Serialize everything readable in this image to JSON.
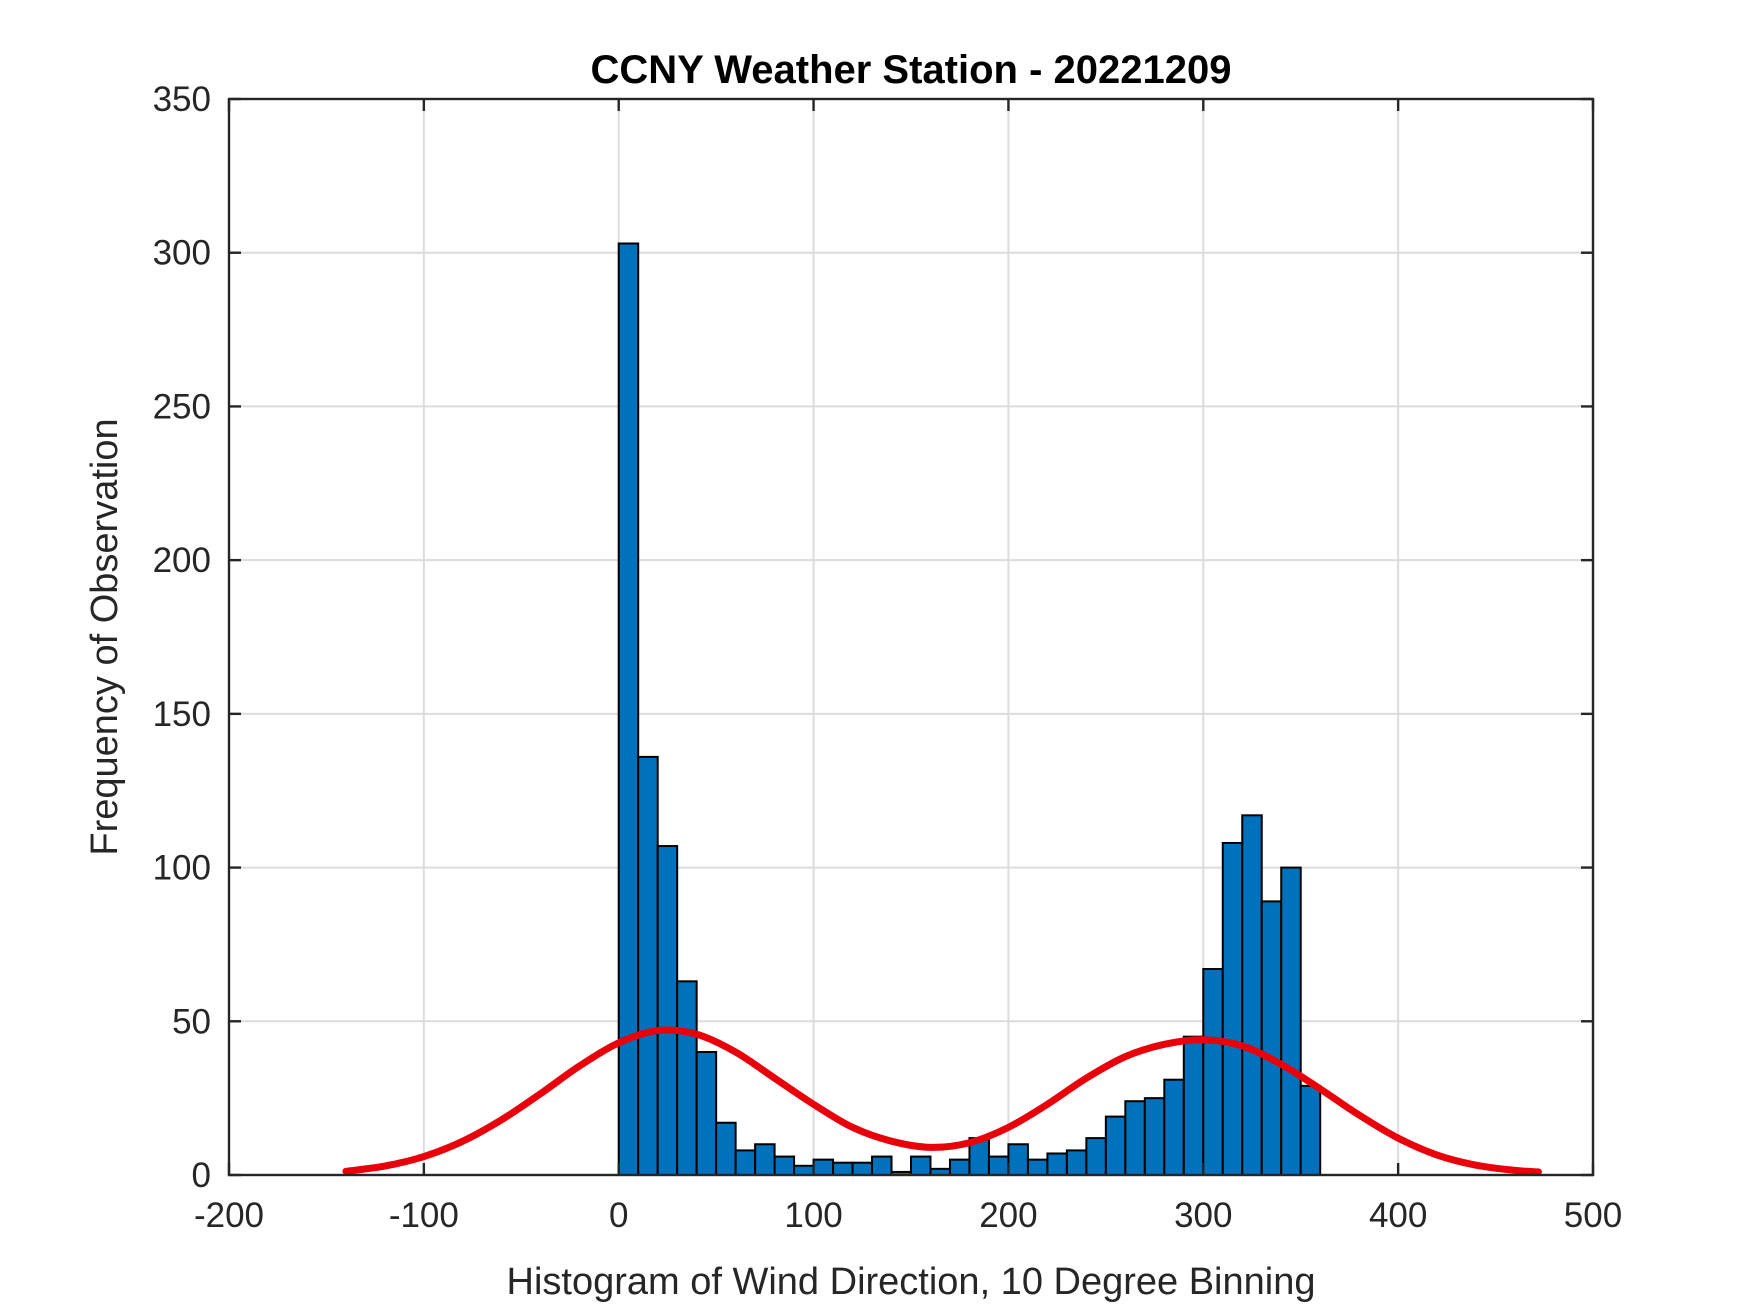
{
  "chart_data": {
    "type": "bar",
    "title": "CCNY Weather Station - 20221209",
    "xlabel": "Histogram of Wind Direction, 10 Degree Binning",
    "ylabel": "Frequency of Observation",
    "xlim": [
      -200,
      500
    ],
    "ylim": [
      0,
      350
    ],
    "xticks": [
      -200,
      -100,
      0,
      100,
      200,
      300,
      400,
      500
    ],
    "yticks": [
      0,
      50,
      100,
      150,
      200,
      250,
      300,
      350
    ],
    "xtick_labels": [
      "-200",
      "-100",
      "0",
      "100",
      "200",
      "300",
      "400",
      "500"
    ],
    "ytick_labels": [
      "0",
      "50",
      "100",
      "150",
      "200",
      "250",
      "300",
      "350"
    ],
    "grid": true,
    "bar_color": "#0072BD",
    "curve_color": "#E8000B",
    "bin_width": 10,
    "bin_edges": [
      0,
      10,
      20,
      30,
      40,
      50,
      60,
      70,
      80,
      90,
      100,
      110,
      120,
      130,
      140,
      150,
      160,
      170,
      180,
      190,
      200,
      210,
      220,
      230,
      240,
      250,
      260,
      270,
      280,
      290,
      300,
      310,
      320,
      330,
      340,
      350,
      360
    ],
    "values": [
      303,
      136,
      107,
      63,
      40,
      17,
      8,
      10,
      6,
      3,
      5,
      4,
      4,
      6,
      1,
      6,
      2,
      5,
      12,
      6,
      10,
      5,
      7,
      8,
      12,
      19,
      24,
      25,
      31,
      45,
      67,
      108,
      117,
      89,
      100,
      29
    ],
    "curve": {
      "x": [
        -140,
        -120,
        -100,
        -80,
        -60,
        -40,
        -20,
        0,
        20,
        40,
        60,
        80,
        100,
        120,
        140,
        160,
        180,
        200,
        220,
        240,
        260,
        280,
        300,
        320,
        340,
        360,
        380,
        400,
        420,
        440,
        460,
        472
      ],
      "y": [
        1.2,
        2.9,
        6.0,
        11.0,
        18.0,
        26.5,
        35.5,
        43.0,
        47.0,
        45.8,
        40.0,
        31.5,
        23.0,
        15.5,
        11.0,
        9.0,
        10.5,
        15.5,
        23.0,
        31.5,
        38.5,
        42.5,
        44.0,
        42.0,
        36.0,
        28.0,
        19.5,
        12.0,
        6.5,
        3.2,
        1.5,
        1.0
      ]
    }
  }
}
